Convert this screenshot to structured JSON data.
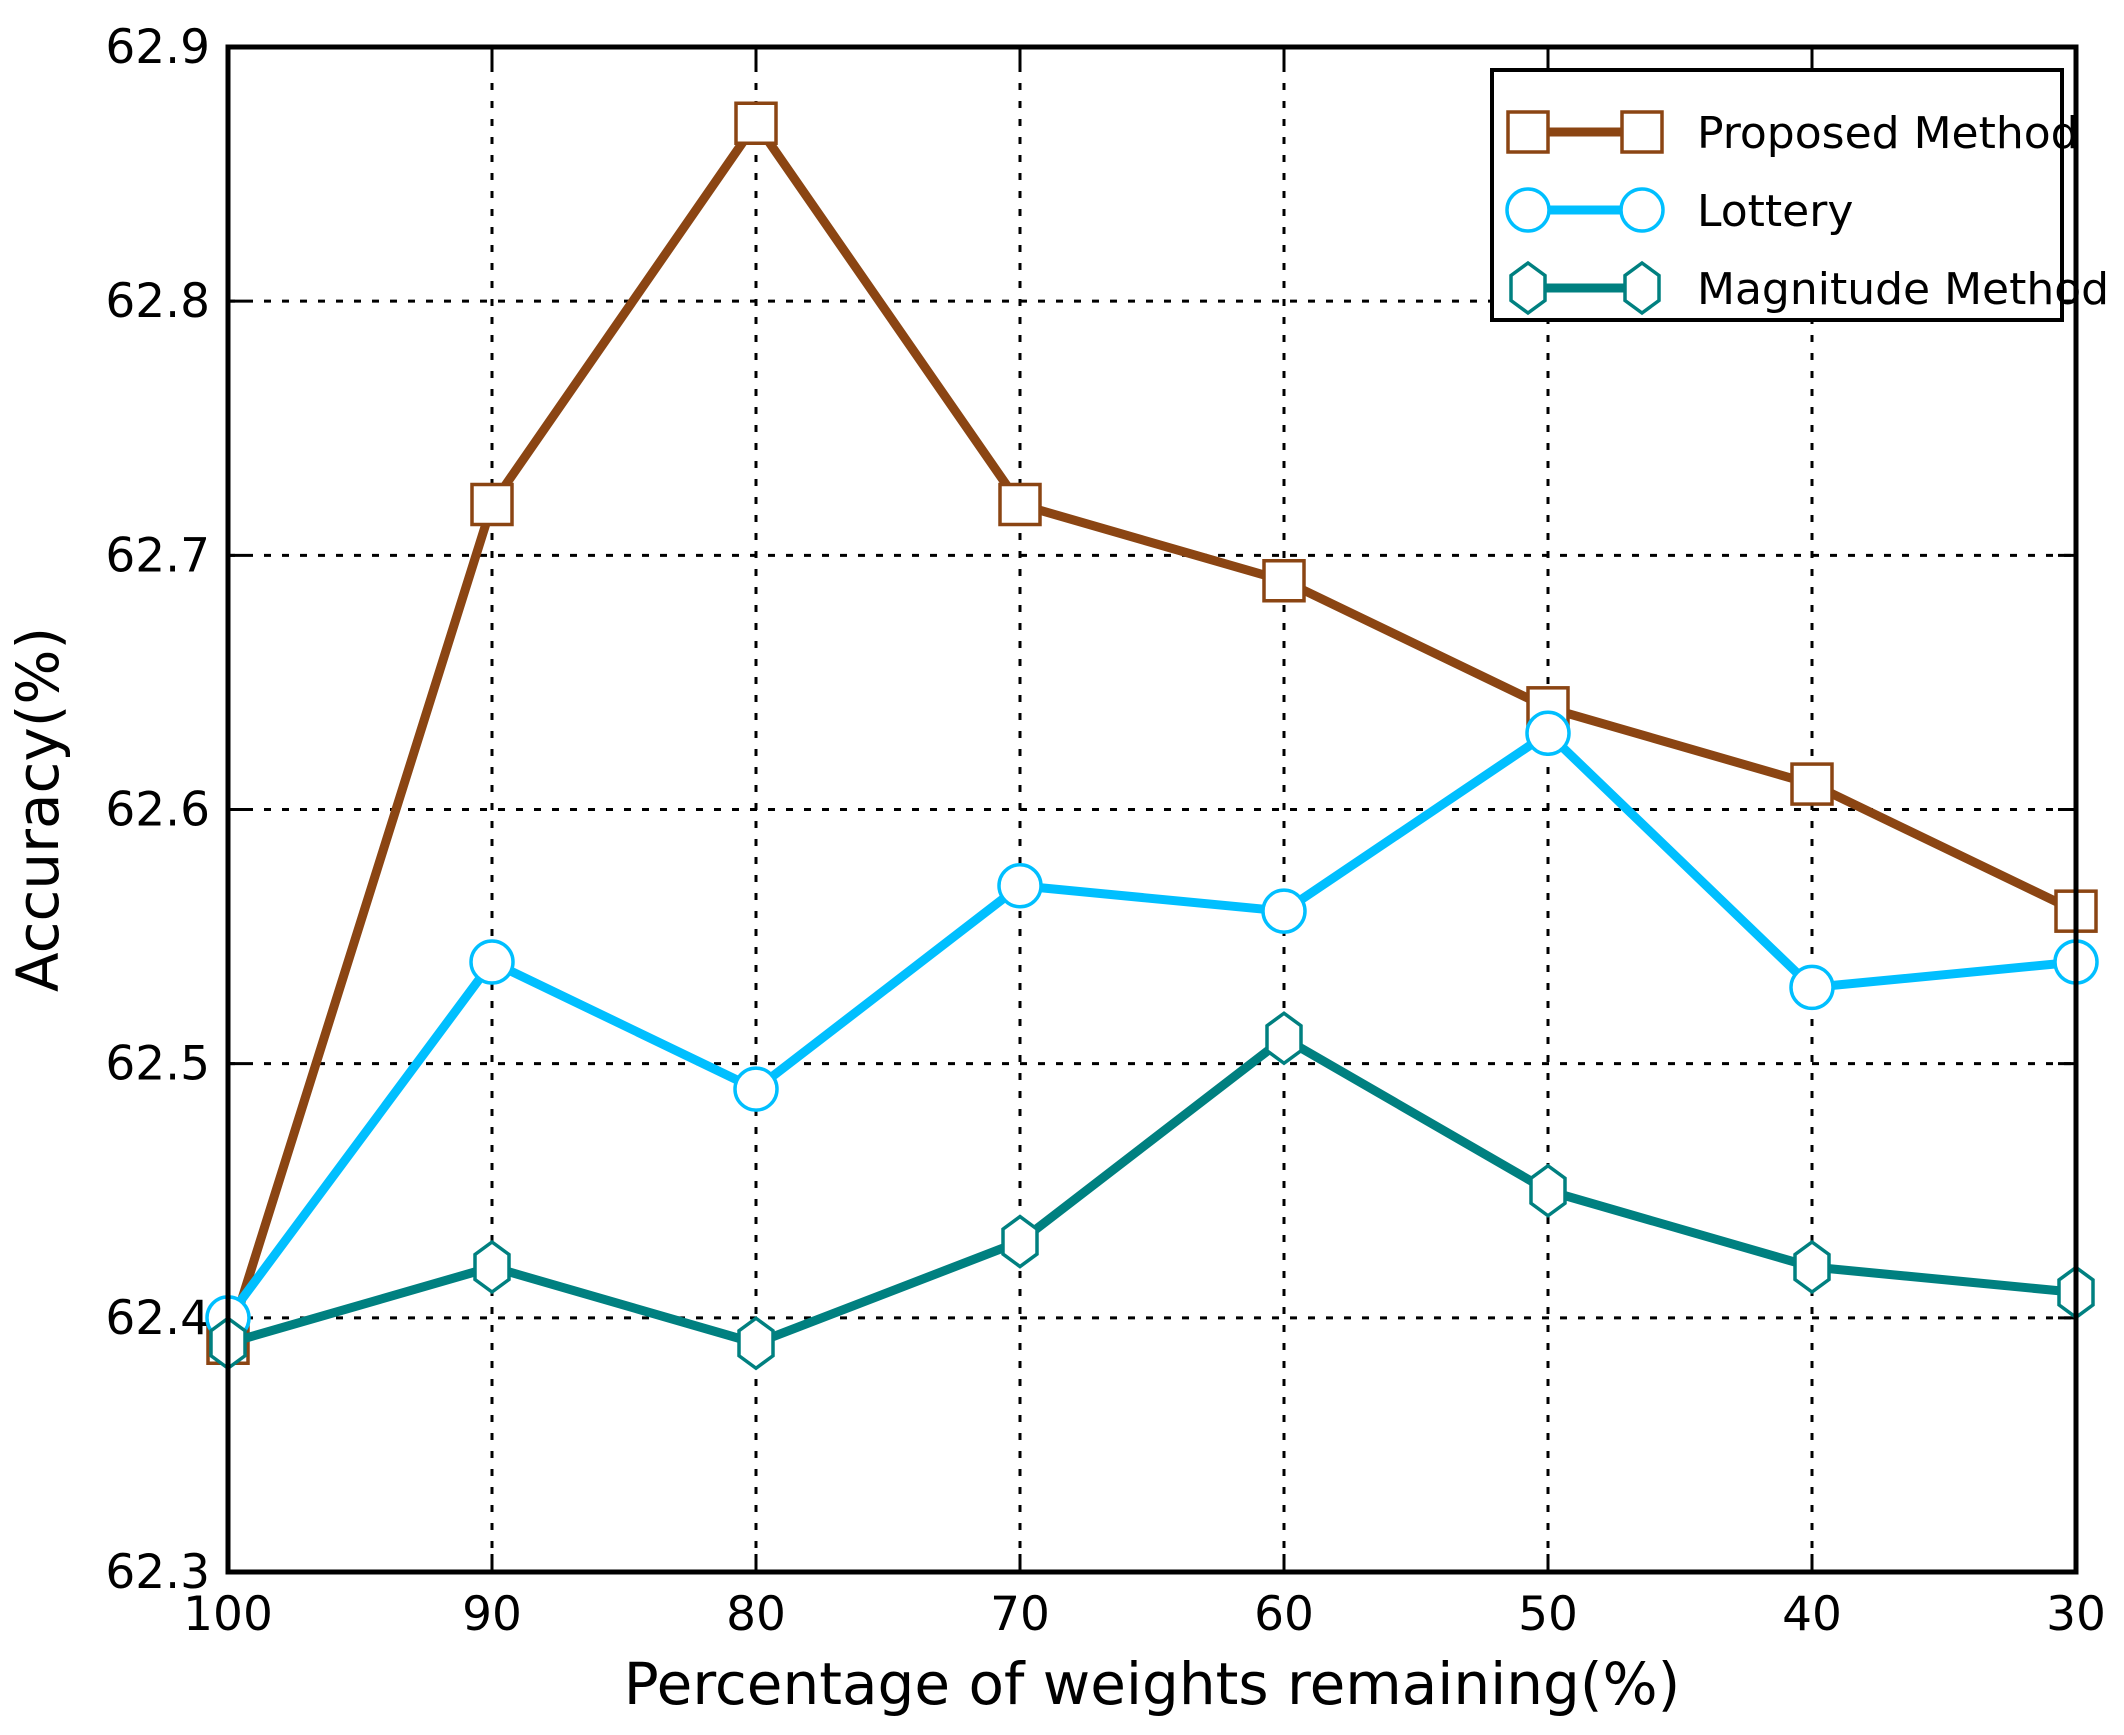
{
  "figure": {
    "background": "#ffffff"
  },
  "chart_data": {
    "type": "line",
    "title": "",
    "xlabel": "Percentage of weights remaining(%)",
    "ylabel": "Accuracy(%)",
    "x": [
      100,
      90,
      80,
      70,
      60,
      50,
      40,
      30
    ],
    "xtick_labels": [
      "100",
      "90",
      "80",
      "70",
      "60",
      "50",
      "40",
      "30"
    ],
    "x_descending": true,
    "ylim": [
      62.3,
      62.9
    ],
    "yticks": [
      62.3,
      62.4,
      62.5,
      62.6,
      62.7,
      62.8,
      62.9
    ],
    "ytick_labels": [
      "62.3",
      "62.4",
      "62.5",
      "62.6",
      "62.7",
      "62.8",
      "62.9"
    ],
    "grid": "dotted",
    "grid_color": "#000000",
    "axis_color": "#000000",
    "legend_position": "upper right",
    "series": [
      {
        "name": "Proposed Method",
        "color": "#8B4513",
        "marker": "square",
        "values": [
          62.39,
          62.72,
          62.87,
          62.72,
          62.69,
          62.64,
          62.61,
          62.56
        ]
      },
      {
        "name": "Lottery",
        "color": "#00BFFF",
        "marker": "circle",
        "values": [
          62.4,
          62.54,
          62.49,
          62.57,
          62.56,
          62.63,
          62.53,
          62.54
        ]
      },
      {
        "name": "Magnitude Method",
        "color": "#008080",
        "marker": "hexagon",
        "values": [
          62.39,
          62.42,
          62.39,
          62.43,
          62.51,
          62.45,
          62.42,
          62.41
        ]
      }
    ]
  }
}
